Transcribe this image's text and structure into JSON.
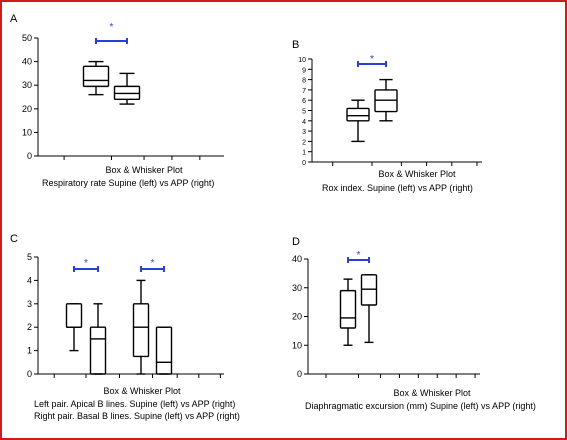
{
  "colors": {
    "frame": "#d11a1a",
    "significance": "#2b3fd6",
    "ink": "#000000"
  },
  "chart_data": [
    {
      "panel": "A",
      "type": "box",
      "ylim": [
        0,
        50
      ],
      "yticks": [
        "0",
        "10",
        "20",
        "30",
        "40",
        "50"
      ],
      "title": "Box & Whisker Plot",
      "caption": [
        "Respiratory rate Supine (left) vs APP (right)"
      ],
      "boxes": [
        {
          "min": 26,
          "q1": 29.5,
          "median": 32,
          "q3": 38,
          "max": 40
        },
        {
          "min": 22,
          "q1": 24,
          "median": 26.5,
          "q3": 29.5,
          "max": 35
        }
      ],
      "significance": [
        {
          "from": 0,
          "to": 1,
          "label": "*"
        }
      ]
    },
    {
      "panel": "B",
      "type": "box",
      "ylim": [
        0,
        10
      ],
      "yticks": [
        "0",
        "1",
        "2",
        "3",
        "4",
        "5",
        "6",
        "7",
        "8",
        "9",
        "10"
      ],
      "title": "Box & Whisker Plot",
      "caption": [
        "Rox index. Supine (left) vs APP (right)"
      ],
      "boxes": [
        {
          "min": 2,
          "q1": 4,
          "median": 4.5,
          "q3": 5.2,
          "max": 6
        },
        {
          "min": 4,
          "q1": 4.9,
          "median": 6,
          "q3": 7,
          "max": 8
        }
      ],
      "significance": [
        {
          "from": 0,
          "to": 1,
          "label": "*"
        }
      ]
    },
    {
      "panel": "C",
      "type": "box",
      "ylim": [
        0,
        5
      ],
      "yticks": [
        "0",
        "1",
        "2",
        "3",
        "4",
        "5"
      ],
      "title": "Box & Whisker Plot",
      "caption": [
        "Left pair. Apical B lines. Supine (left) vs APP (right)",
        "Right pair. Basal B lines. Supine (left) vs APP (right)"
      ],
      "boxes": [
        {
          "min": 1,
          "q1": 2,
          "median": 2,
          "q3": 3,
          "max": 3
        },
        {
          "min": 0,
          "q1": 0,
          "median": 1.5,
          "q3": 2,
          "max": 3
        },
        {
          "min": 0,
          "q1": 0.75,
          "median": 2,
          "q3": 3,
          "max": 4
        },
        {
          "min": 0,
          "q1": 0,
          "median": 0.5,
          "q3": 2,
          "max": 2
        }
      ],
      "significance": [
        {
          "from": 0,
          "to": 1,
          "label": "*"
        },
        {
          "from": 2,
          "to": 3,
          "label": "*"
        }
      ]
    },
    {
      "panel": "D",
      "type": "box",
      "ylim": [
        0,
        40
      ],
      "yticks": [
        "0",
        "10",
        "20",
        "30",
        "40"
      ],
      "title": "Box & Whisker Plot",
      "caption": [
        "Diaphragmatic excursion (mm) Supine (left) vs APP (right)"
      ],
      "boxes": [
        {
          "min": 10,
          "q1": 16,
          "median": 19.5,
          "q3": 29,
          "max": 33
        },
        {
          "min": 11,
          "q1": 24,
          "median": 29.5,
          "q3": 34.5,
          "max": 34.5
        }
      ],
      "significance": [
        {
          "from": 0,
          "to": 1,
          "label": "*"
        }
      ]
    }
  ]
}
